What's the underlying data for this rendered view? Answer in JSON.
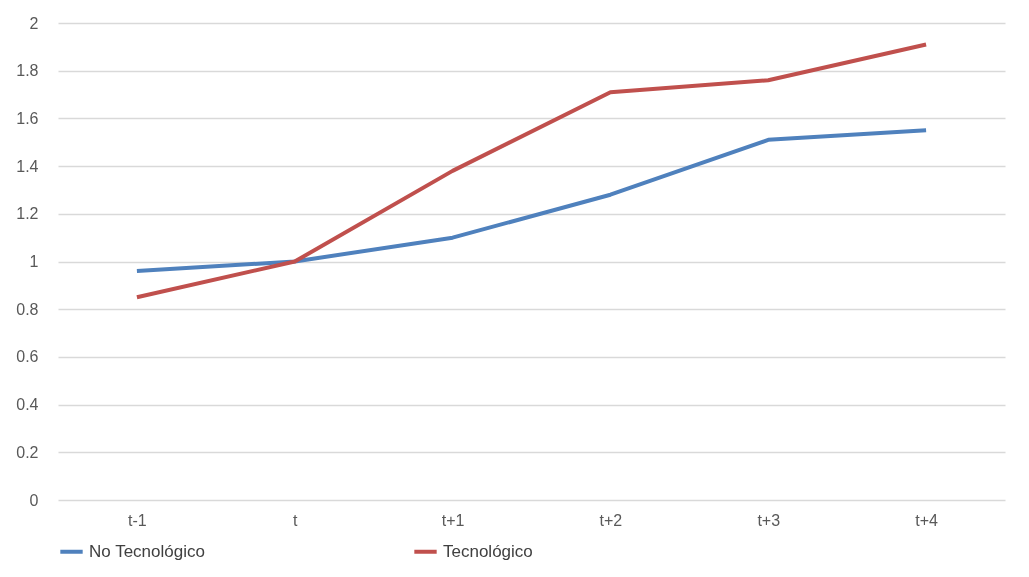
{
  "chart_data": {
    "type": "line",
    "categories": [
      "t-1",
      "t",
      "t+1",
      "t+2",
      "t+3",
      "t+4"
    ],
    "series": [
      {
        "name": "No Tecnológico",
        "color": "#4f81bd",
        "values": [
          0.96,
          1.0,
          1.1,
          1.28,
          1.51,
          1.55
        ]
      },
      {
        "name": "Tecnológico",
        "color": "#c0504d",
        "values": [
          0.85,
          1.0,
          1.38,
          1.71,
          1.76,
          1.91
        ]
      }
    ],
    "ylim": [
      0,
      2
    ],
    "yticks": [
      0,
      0.2,
      0.4,
      0.6,
      0.8,
      1,
      1.2,
      1.4,
      1.6,
      1.8,
      2
    ],
    "grid": "y",
    "legend": "bottom",
    "marker": "none",
    "line_style": "solid"
  }
}
